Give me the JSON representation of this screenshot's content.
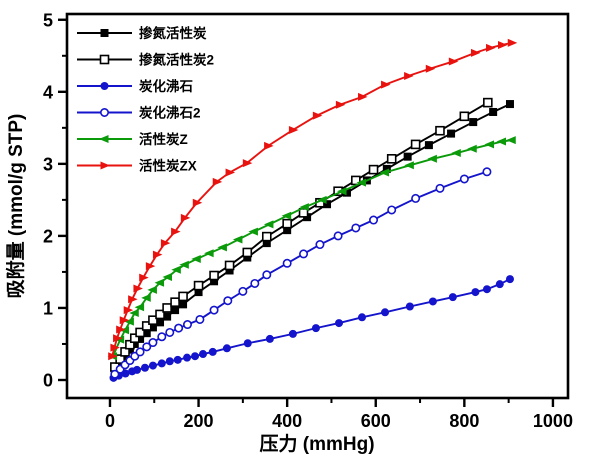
{
  "figure": {
    "background": "#ffffff",
    "frame_color": "#000000"
  },
  "chart_data": {
    "type": "line",
    "title": "",
    "xlabel": "压力  (mmHg)",
    "ylabel": "吸附量  (mmol/g STP)",
    "x_range": [
      -97,
      1034
    ],
    "y_range": [
      -0.25,
      5.08
    ],
    "x_ticks_major": [
      0,
      200,
      400,
      600,
      800,
      1000
    ],
    "x_ticks_minor": [
      100,
      300,
      500,
      700,
      900
    ],
    "y_ticks_major": [
      0,
      1,
      2,
      3,
      4,
      5
    ],
    "y_ticks_minor": [
      0.5,
      1.5,
      2.5,
      3.5,
      4.5
    ],
    "grid": false,
    "legend_position": "top-left-inside",
    "series": [
      {
        "name": "掺氮活性炭",
        "color": "#000000",
        "marker": "square-filled",
        "x": [
          11,
          23,
          34,
          45,
          56,
          68,
          83,
          97,
          113,
          129,
          147,
          165,
          200,
          235,
          270,
          310,
          354,
          400,
          445,
          490,
          535,
          580,
          625,
          672,
          720,
          770,
          820,
          865,
          903
        ],
        "y": [
          0.15,
          0.25,
          0.33,
          0.42,
          0.5,
          0.57,
          0.65,
          0.73,
          0.8,
          0.88,
          0.97,
          1.05,
          1.22,
          1.37,
          1.52,
          1.7,
          1.9,
          2.08,
          2.26,
          2.44,
          2.6,
          2.77,
          2.93,
          3.1,
          3.26,
          3.42,
          3.58,
          3.72,
          3.83
        ]
      },
      {
        "name": "掺氮活性炭2",
        "color": "#000000",
        "marker": "square-open",
        "x": [
          11,
          23,
          34,
          45,
          56,
          68,
          83,
          97,
          113,
          129,
          147,
          165,
          200,
          235,
          270,
          310,
          354,
          400,
          437,
          474,
          515,
          555,
          595,
          636,
          690,
          745,
          800,
          853
        ],
        "y": [
          0.18,
          0.29,
          0.39,
          0.49,
          0.58,
          0.66,
          0.75,
          0.83,
          0.91,
          1.0,
          1.08,
          1.16,
          1.31,
          1.45,
          1.59,
          1.77,
          1.99,
          2.17,
          2.32,
          2.46,
          2.62,
          2.77,
          2.92,
          3.07,
          3.27,
          3.46,
          3.66,
          3.85
        ]
      },
      {
        "name": "炭化沸石",
        "color": "#1414cc",
        "marker": "circle-filled",
        "x": [
          8,
          20,
          35,
          50,
          61,
          79,
          97,
          117,
          135,
          153,
          174,
          192,
          210,
          232,
          264,
          311,
          361,
          413,
          465,
          517,
          569,
          621,
          677,
          729,
          774,
          825,
          851,
          880,
          903
        ],
        "y": [
          0.03,
          0.06,
          0.09,
          0.12,
          0.14,
          0.17,
          0.2,
          0.23,
          0.26,
          0.28,
          0.31,
          0.33,
          0.36,
          0.39,
          0.44,
          0.51,
          0.57,
          0.64,
          0.72,
          0.79,
          0.87,
          0.94,
          1.02,
          1.09,
          1.15,
          1.22,
          1.26,
          1.33,
          1.4
        ]
      },
      {
        "name": "炭化沸石2",
        "color": "#1414cc",
        "marker": "circle-open",
        "x": [
          11,
          23,
          34,
          45,
          56,
          68,
          83,
          97,
          117,
          135,
          155,
          175,
          203,
          235,
          266,
          300,
          327,
          354,
          400,
          437,
          474,
          515,
          555,
          595,
          636,
          690,
          745,
          800,
          851
        ],
        "y": [
          0.08,
          0.15,
          0.21,
          0.27,
          0.33,
          0.39,
          0.46,
          0.52,
          0.6,
          0.66,
          0.72,
          0.77,
          0.84,
          0.97,
          1.1,
          1.23,
          1.34,
          1.46,
          1.62,
          1.75,
          1.88,
          2.0,
          2.11,
          2.22,
          2.36,
          2.52,
          2.66,
          2.79,
          2.89
        ]
      },
      {
        "name": "活性炭Z",
        "color": "#0a9a0a",
        "marker": "triangle-left",
        "x": [
          7,
          23,
          34,
          45,
          56,
          68,
          83,
          97,
          113,
          131,
          151,
          169,
          196,
          225,
          255,
          290,
          325,
          360,
          400,
          440,
          480,
          525,
          569,
          621,
          677,
          729,
          783,
          819,
          858,
          885,
          907
        ],
        "y": [
          0.33,
          0.56,
          0.69,
          0.81,
          0.93,
          1.01,
          1.14,
          1.25,
          1.35,
          1.43,
          1.53,
          1.6,
          1.68,
          1.76,
          1.84,
          1.95,
          2.06,
          2.16,
          2.28,
          2.4,
          2.5,
          2.62,
          2.74,
          2.88,
          2.98,
          3.07,
          3.15,
          3.21,
          3.27,
          3.31,
          3.33
        ]
      },
      {
        "name": "活性炭ZX",
        "color": "#e8120f",
        "marker": "triangle-right",
        "x": [
          5,
          10,
          16,
          23,
          31,
          40,
          50,
          62,
          75,
          90,
          106,
          124,
          147,
          169,
          196,
          241,
          270,
          309,
          357,
          413,
          467,
          519,
          569,
          621,
          673,
          722,
          774,
          824,
          858,
          885,
          907
        ],
        "y": [
          0.33,
          0.45,
          0.58,
          0.7,
          0.83,
          0.97,
          1.12,
          1.27,
          1.42,
          1.58,
          1.74,
          1.9,
          2.06,
          2.25,
          2.46,
          2.75,
          2.88,
          3.01,
          3.25,
          3.47,
          3.67,
          3.82,
          3.93,
          4.1,
          4.22,
          4.32,
          4.42,
          4.54,
          4.61,
          4.65,
          4.68
        ]
      }
    ]
  }
}
